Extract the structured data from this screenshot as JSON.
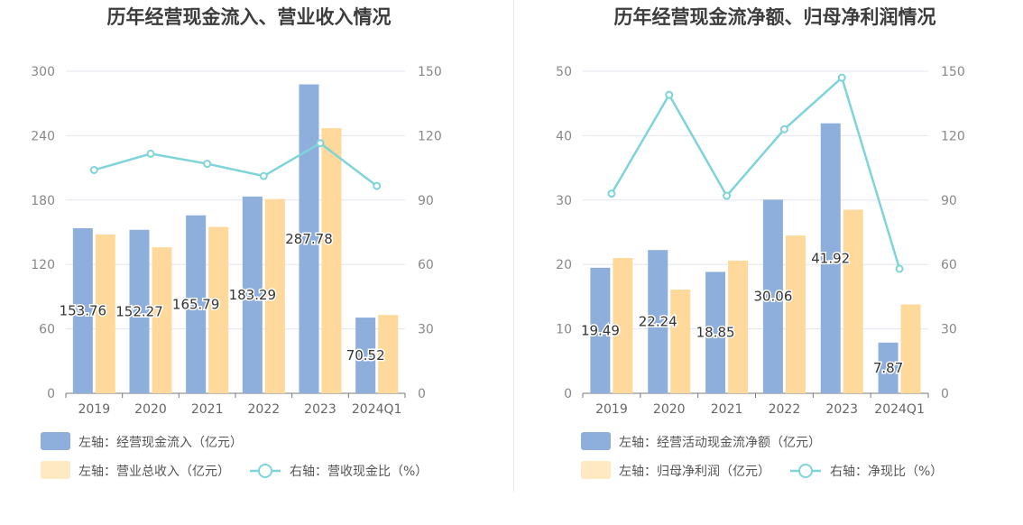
{
  "chart_data": [
    {
      "type": "bar",
      "title": "历年经营现金流入、营业收入情况",
      "categories": [
        "2019",
        "2020",
        "2021",
        "2022",
        "2023",
        "2024Q1"
      ],
      "y_left": {
        "min": 0,
        "max": 300,
        "ticks": [
          "0",
          "60",
          "120",
          "180",
          "240",
          "300"
        ]
      },
      "y_right": {
        "min": 0,
        "max": 150,
        "ticks": [
          "0",
          "30",
          "60",
          "90",
          "120",
          "150"
        ]
      },
      "series": [
        {
          "name": "左轴：经营现金流入（亿元）",
          "kind": "bar",
          "axis": "left",
          "color": "#8eaedb",
          "values": [
            153.76,
            152.27,
            165.79,
            183.29,
            287.78,
            70.52
          ],
          "labels": [
            "153.76",
            "152.27",
            "165.79",
            "183.29",
            "287.78",
            "70.52"
          ]
        },
        {
          "name": "左轴：营业总收入（亿元）",
          "kind": "bar",
          "axis": "left",
          "color": "#ffd99b",
          "values": [
            148,
            136,
            155,
            181,
            247,
            73
          ]
        },
        {
          "name": "右轴：营收现金比（%）",
          "kind": "line",
          "axis": "right",
          "color": "#7fd4da",
          "values": [
            104,
            111.6,
            106.9,
            101.2,
            116.5,
            96.6
          ]
        }
      ],
      "legend_position": "bottom-left",
      "grid": true
    },
    {
      "type": "bar",
      "title": "历年经营现金流净额、归母净利润情况",
      "categories": [
        "2019",
        "2020",
        "2021",
        "2022",
        "2023",
        "2024Q1"
      ],
      "y_left": {
        "min": 0,
        "max": 50,
        "ticks": [
          "0",
          "10",
          "20",
          "30",
          "40",
          "50"
        ]
      },
      "y_right": {
        "min": 0,
        "max": 150,
        "ticks": [
          "0",
          "30",
          "60",
          "90",
          "120",
          "150"
        ]
      },
      "series": [
        {
          "name": "左轴：经营活动现金流净额（亿元）",
          "kind": "bar",
          "axis": "left",
          "color": "#8eaedb",
          "values": [
            19.49,
            22.24,
            18.85,
            30.06,
            41.92,
            7.87
          ],
          "labels": [
            "19.49",
            "22.24",
            "18.85",
            "30.06",
            "41.92",
            "7.87"
          ]
        },
        {
          "name": "左轴：归母净利润（亿元）",
          "kind": "bar",
          "axis": "left",
          "color": "#ffd99b",
          "values": [
            21,
            16.1,
            20.6,
            24.5,
            28.5,
            13.8
          ]
        },
        {
          "name": "右轴：净现比（%）",
          "kind": "line",
          "axis": "right",
          "color": "#7fd4da",
          "values": [
            93,
            139,
            92,
            123,
            147,
            58
          ]
        }
      ],
      "legend_position": "bottom-left",
      "grid": true
    }
  ]
}
